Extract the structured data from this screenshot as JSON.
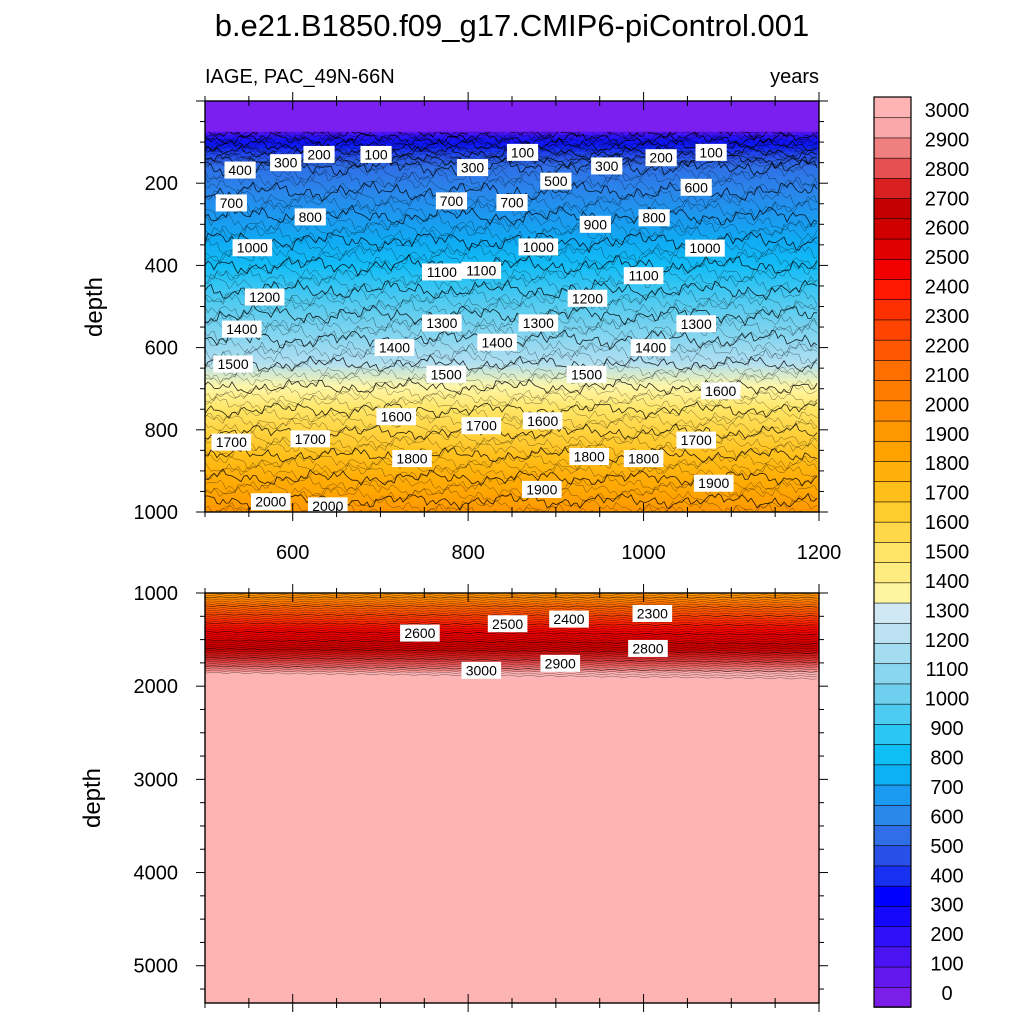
{
  "chart_data": {
    "type": "contour",
    "title": "b.e21.B1850.f09_g17.CMIP6-piControl.001",
    "variable_label": "IAGE, PAC_49N-66N",
    "units_label": "years",
    "xlim": [
      500,
      1200
    ],
    "x_ticks": [
      "600",
      "800",
      "1000",
      "1200"
    ],
    "ylabel": "depth",
    "panels": [
      {
        "name": "upper",
        "ylim": [
          0,
          1000
        ],
        "y_ticks": [
          "200",
          "400",
          "600",
          "800",
          "1000"
        ],
        "contour_labels": [
          {
            "text": "100",
            "x": 695,
            "y": 130
          },
          {
            "text": "100",
            "x": 862,
            "y": 125
          },
          {
            "text": "100",
            "x": 1077,
            "y": 125
          },
          {
            "text": "200",
            "x": 630,
            "y": 130
          },
          {
            "text": "200",
            "x": 1020,
            "y": 138
          },
          {
            "text": "300",
            "x": 592,
            "y": 150
          },
          {
            "text": "300",
            "x": 805,
            "y": 162
          },
          {
            "text": "300",
            "x": 958,
            "y": 158
          },
          {
            "text": "400",
            "x": 540,
            "y": 168
          },
          {
            "text": "500",
            "x": 900,
            "y": 195
          },
          {
            "text": "600",
            "x": 1060,
            "y": 210
          },
          {
            "text": "700",
            "x": 530,
            "y": 248
          },
          {
            "text": "700",
            "x": 781,
            "y": 243
          },
          {
            "text": "700",
            "x": 850,
            "y": 247
          },
          {
            "text": "800",
            "x": 620,
            "y": 282
          },
          {
            "text": "800",
            "x": 1012,
            "y": 284
          },
          {
            "text": "900",
            "x": 945,
            "y": 300
          },
          {
            "text": "1000",
            "x": 554,
            "y": 357
          },
          {
            "text": "1000",
            "x": 880,
            "y": 355
          },
          {
            "text": "1000",
            "x": 1070,
            "y": 358
          },
          {
            "text": "1100",
            "x": 770,
            "y": 416
          },
          {
            "text": "1100",
            "x": 815,
            "y": 412
          },
          {
            "text": "1100",
            "x": 1000,
            "y": 425
          },
          {
            "text": "1200",
            "x": 568,
            "y": 477
          },
          {
            "text": "1200",
            "x": 936,
            "y": 480
          },
          {
            "text": "1300",
            "x": 770,
            "y": 540
          },
          {
            "text": "1300",
            "x": 880,
            "y": 540
          },
          {
            "text": "1300",
            "x": 1060,
            "y": 542
          },
          {
            "text": "1400",
            "x": 542,
            "y": 555
          },
          {
            "text": "1400",
            "x": 716,
            "y": 600
          },
          {
            "text": "1400",
            "x": 833,
            "y": 587
          },
          {
            "text": "1400",
            "x": 1008,
            "y": 600
          },
          {
            "text": "1500",
            "x": 532,
            "y": 640
          },
          {
            "text": "1500",
            "x": 775,
            "y": 665
          },
          {
            "text": "1500",
            "x": 935,
            "y": 665
          },
          {
            "text": "1600",
            "x": 718,
            "y": 768
          },
          {
            "text": "1600",
            "x": 885,
            "y": 778
          },
          {
            "text": "1600",
            "x": 1088,
            "y": 705
          },
          {
            "text": "1700",
            "x": 530,
            "y": 830
          },
          {
            "text": "1700",
            "x": 620,
            "y": 822
          },
          {
            "text": "1700",
            "x": 815,
            "y": 790
          },
          {
            "text": "1700",
            "x": 1060,
            "y": 825
          },
          {
            "text": "1800",
            "x": 736,
            "y": 870
          },
          {
            "text": "1800",
            "x": 938,
            "y": 865
          },
          {
            "text": "1800",
            "x": 1000,
            "y": 870
          },
          {
            "text": "1900",
            "x": 884,
            "y": 945
          },
          {
            "text": "1900",
            "x": 1080,
            "y": 930
          },
          {
            "text": "2000",
            "x": 575,
            "y": 975
          },
          {
            "text": "2000",
            "x": 640,
            "y": 985
          }
        ]
      },
      {
        "name": "lower",
        "ylim": [
          1000,
          5400
        ],
        "y_ticks": [
          "1000",
          "2000",
          "3000",
          "4000",
          "5000"
        ],
        "contour_labels": [
          {
            "text": "2300",
            "x": 1010,
            "y": 1220
          },
          {
            "text": "2400",
            "x": 915,
            "y": 1280
          },
          {
            "text": "2500",
            "x": 845,
            "y": 1330
          },
          {
            "text": "2600",
            "x": 745,
            "y": 1430
          },
          {
            "text": "2800",
            "x": 1005,
            "y": 1595
          },
          {
            "text": "2900",
            "x": 905,
            "y": 1755
          },
          {
            "text": "3000",
            "x": 815,
            "y": 1830
          }
        ]
      }
    ],
    "colorbar": {
      "levels": [
        0,
        100,
        200,
        300,
        400,
        500,
        600,
        700,
        800,
        900,
        1000,
        1100,
        1200,
        1300,
        1400,
        1500,
        1600,
        1700,
        1800,
        1900,
        2000,
        2100,
        2200,
        2300,
        2400,
        2500,
        2600,
        2700,
        2800,
        2900,
        3000
      ],
      "labels": [
        "0",
        "100",
        "200",
        "300",
        "400",
        "500",
        "600",
        "700",
        "800",
        "900",
        "1000",
        "1100",
        "1200",
        "1300",
        "1400",
        "1500",
        "1600",
        "1700",
        "1800",
        "1900",
        "2000",
        "2100",
        "2200",
        "2300",
        "2400",
        "2500",
        "2600",
        "2700",
        "2800",
        "2900",
        "3000"
      ],
      "colors": [
        "#7b1ee8",
        "#6418f0",
        "#4b14f5",
        "#2f10f8",
        "#1608fb",
        "#0000ff",
        "#1830f0",
        "#2850e8",
        "#2f6ee6",
        "#2a88ea",
        "#1a9af0",
        "#0eb0f4",
        "#10bef6",
        "#2ac6f4",
        "#4ecbf0",
        "#6ed0ee",
        "#8ad6f0",
        "#a4dcf0",
        "#bce2f2",
        "#d0e8f4",
        "#fff5a0",
        "#ffec80",
        "#ffe466",
        "#ffd84a",
        "#ffcc30",
        "#ffbe1a",
        "#ffb00a",
        "#ffa200",
        "#ff9800",
        "#ff8a00",
        "#ff7c00",
        "#ff6e00",
        "#ff5800",
        "#ff4400",
        "#ff3000",
        "#ff1800",
        "#f20000",
        "#e00000",
        "#d00000",
        "#c40000",
        "#d82020",
        "#e65050",
        "#f08080",
        "#f8a8a8",
        "#ffb4b4"
      ]
    }
  }
}
